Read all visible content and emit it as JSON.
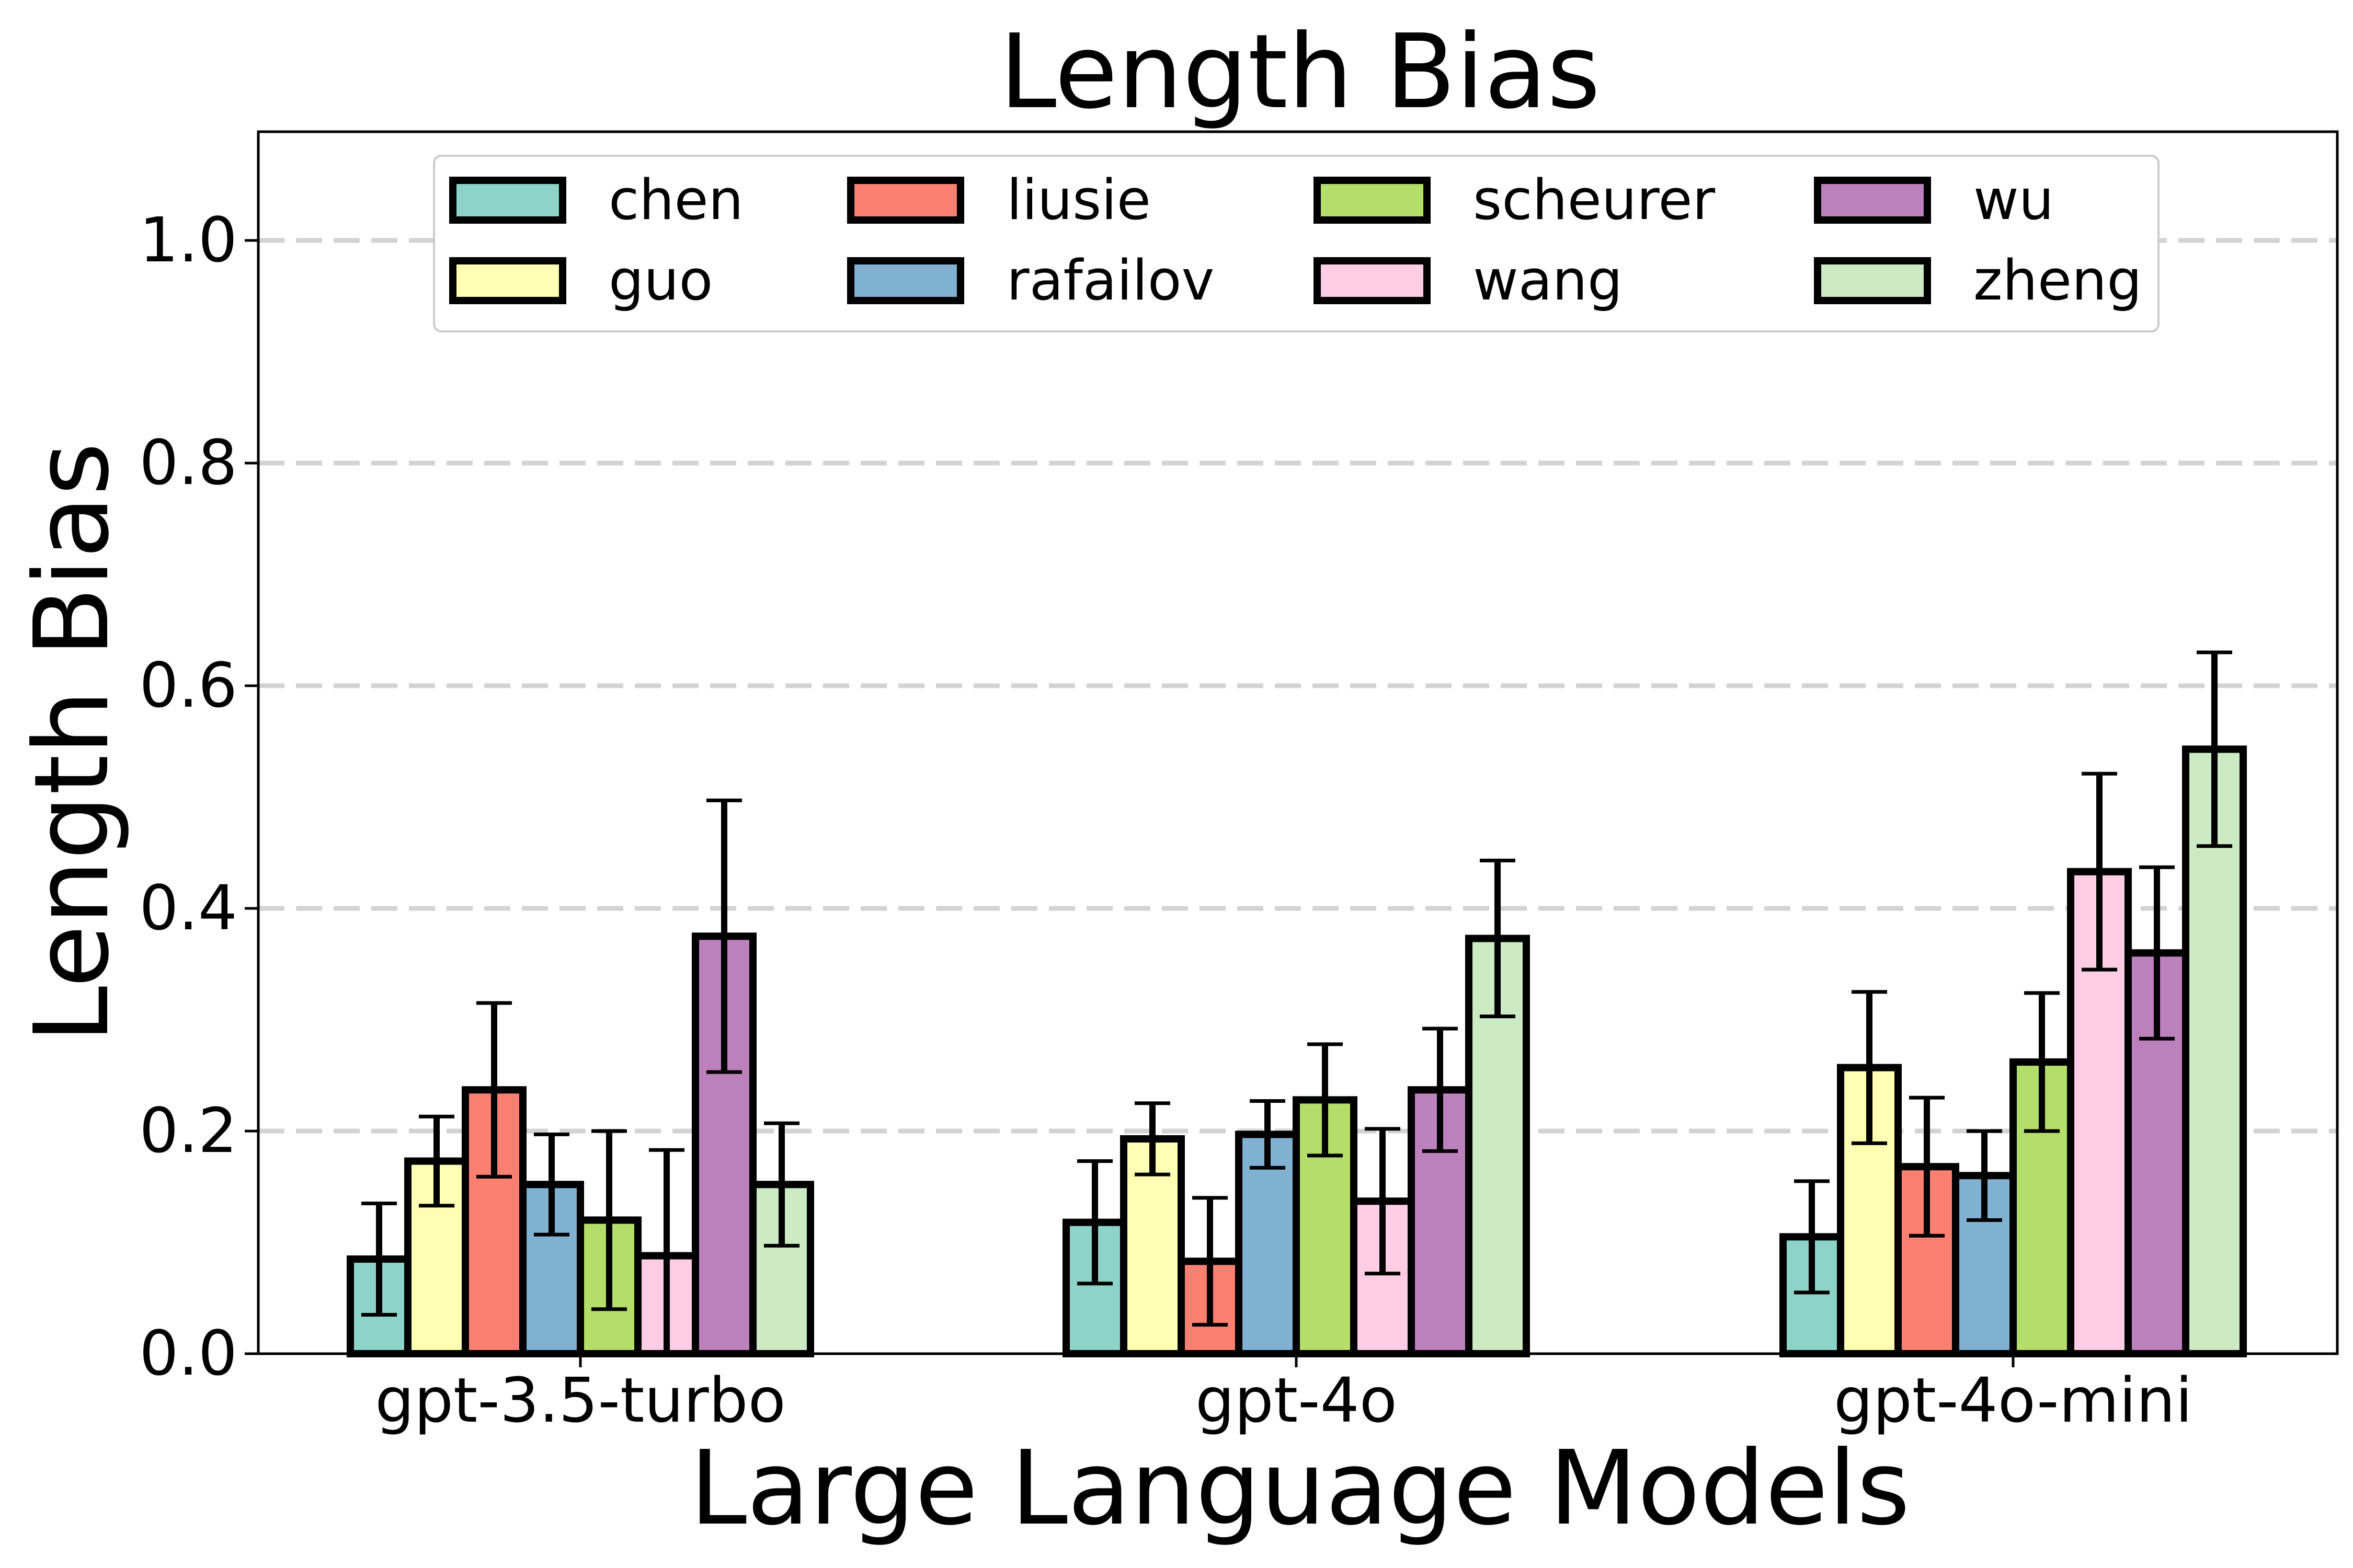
{
  "chart_data": {
    "type": "bar",
    "title": "Length Bias",
    "xlabel": "Large Language Models",
    "ylabel": "Length Bias",
    "ylim": [
      0,
      1.1
    ],
    "yticks": [
      "0.0",
      "0.2",
      "0.4",
      "0.6",
      "0.8",
      "1.0"
    ],
    "grid": "horizontal-dashed",
    "legend_position": "top-center",
    "categories": [
      "gpt-3.5-turbo",
      "gpt-4o",
      "gpt-4o-mini"
    ],
    "series": [
      {
        "name": "chen",
        "color": "#8dd3c7",
        "values": [
          0.085,
          0.118,
          0.105
        ],
        "errors": [
          0.05,
          0.055,
          0.05
        ]
      },
      {
        "name": "guo",
        "color": "#ffffb3",
        "values": [
          0.173,
          0.193,
          0.257
        ],
        "errors": [
          0.04,
          0.032,
          0.068
        ]
      },
      {
        "name": "liusie",
        "color": "#fb8072",
        "values": [
          0.237,
          0.083,
          0.168
        ],
        "errors": [
          0.078,
          0.057,
          0.062
        ]
      },
      {
        "name": "rafailov",
        "color": "#80b1d3",
        "values": [
          0.152,
          0.197,
          0.16
        ],
        "errors": [
          0.045,
          0.03,
          0.04
        ]
      },
      {
        "name": "scheurer",
        "color": "#b3de69",
        "values": [
          0.12,
          0.228,
          0.262
        ],
        "errors": [
          0.08,
          0.05,
          0.062
        ]
      },
      {
        "name": "wang",
        "color": "#fccde5",
        "values": [
          0.088,
          0.137,
          0.433
        ],
        "errors": [
          0.095,
          0.065,
          0.088
        ]
      },
      {
        "name": "wu",
        "color": "#bc80bd",
        "values": [
          0.375,
          0.237,
          0.36
        ],
        "errors": [
          0.122,
          0.055,
          0.077
        ]
      },
      {
        "name": "zheng",
        "color": "#ccebc5",
        "values": [
          0.152,
          0.373,
          0.543
        ],
        "errors": [
          0.055,
          0.07,
          0.087
        ]
      }
    ]
  }
}
